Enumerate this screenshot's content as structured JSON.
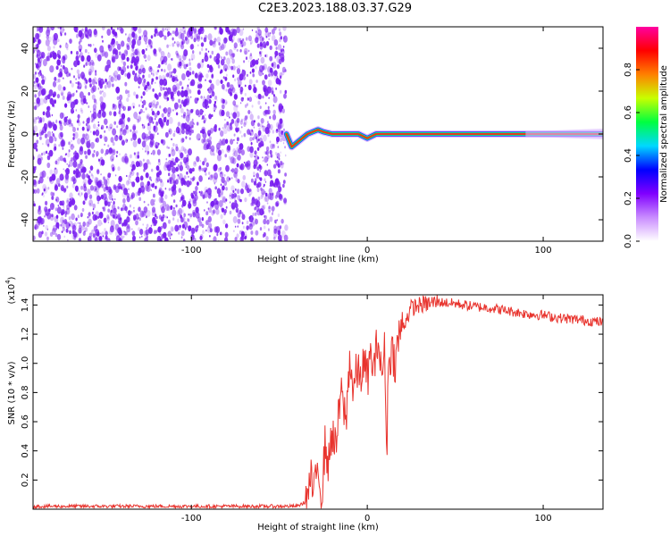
{
  "title": "C2E3.2023.188.03.37.G29",
  "colors": {
    "scatter": "#7a1ff0",
    "snr_line": "#e8332d",
    "colorbar": [
      "#ffffff",
      "#c98cff",
      "#8000ff",
      "#0000ff",
      "#00d8ff",
      "#00ff40",
      "#c8ff00",
      "#ff8000",
      "#ff0000",
      "#ff00a0"
    ]
  },
  "chart_data": [
    {
      "type": "heatmap",
      "xlabel": "Height of straight line (km)",
      "ylabel": "Frequency (Hz)",
      "xlim": [
        -190,
        134
      ],
      "ylim": [
        -50,
        50
      ],
      "xticks": [
        -100,
        0,
        100
      ],
      "yticks": [
        -40,
        -20,
        0,
        20,
        40
      ],
      "noise_region_x": [
        -190,
        -46
      ],
      "ridge": {
        "x": [
          -46,
          -43,
          -40,
          -37,
          -34,
          -31,
          -28,
          -25,
          -20,
          -15,
          -10,
          -5,
          0,
          5,
          10,
          20,
          40,
          60,
          80,
          100,
          120,
          134
        ],
        "freq": [
          0,
          -6,
          -4,
          -2,
          0,
          1,
          2,
          1,
          0,
          0,
          0,
          0,
          -2,
          0,
          0,
          0,
          0,
          0,
          0,
          0,
          0,
          0
        ]
      },
      "colorbar": {
        "label": "Normalized spectral amplitude",
        "ticks": [
          0.0,
          0.2,
          0.4,
          0.6,
          0.8
        ],
        "range": [
          0,
          1
        ]
      }
    },
    {
      "type": "line",
      "xlabel": "Height of straight line (km)",
      "ylabel": "SNR (10 * v/v)",
      "multiplier": "(x10",
      "multiplier_exp": "4",
      "multiplier_close": ")",
      "xlim": [
        -190,
        134
      ],
      "ylim": [
        0,
        1.47
      ],
      "xticks": [
        -100,
        0,
        100
      ],
      "yticks": [
        0.2,
        0.4,
        0.6,
        0.8,
        1.0,
        1.2,
        1.4
      ],
      "ytick_labels": [
        "0.2",
        "0.4",
        "0.6",
        "0.8",
        "1.0",
        "1.2",
        "1.4"
      ],
      "series": [
        {
          "x": [
            -190,
            -60,
            -40,
            -35,
            -32,
            -30,
            -28,
            -26,
            -24,
            -22,
            -20,
            -18,
            -15,
            -12,
            -10,
            -8,
            -6,
            -4,
            -2,
            0,
            2,
            4,
            6,
            8,
            10,
            11,
            12,
            14,
            16,
            18,
            20,
            22,
            25,
            30,
            40,
            50,
            60,
            70,
            80,
            90,
            100,
            110,
            120,
            134
          ],
          "values": [
            0.02,
            0.02,
            0.02,
            0.05,
            0.2,
            0.1,
            0.35,
            0.05,
            0.45,
            0.3,
            0.55,
            0.4,
            0.8,
            0.6,
            1.05,
            0.8,
            0.95,
            0.9,
            1.0,
            0.9,
            1.05,
            0.95,
            1.2,
            0.9,
            1.1,
            0.35,
            1.0,
            1.1,
            1.0,
            1.2,
            1.25,
            1.3,
            1.38,
            1.4,
            1.42,
            1.41,
            1.39,
            1.38,
            1.36,
            1.34,
            1.33,
            1.31,
            1.3,
            1.28
          ]
        }
      ]
    }
  ]
}
